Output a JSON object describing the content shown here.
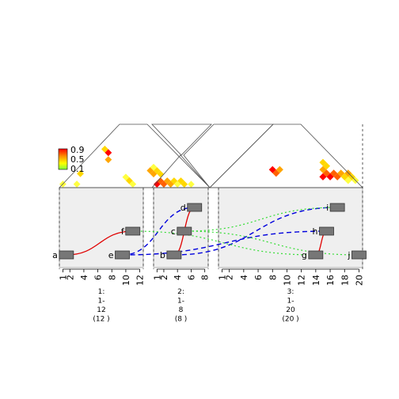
{
  "legend": {
    "labels": [
      "0.9",
      "0.5",
      "0.1"
    ],
    "colors": [
      "#ff0000",
      "#ff8c00",
      "#ffff00",
      "#80ff40"
    ]
  },
  "heat_colors": [
    "#80ff80",
    "#ffff40",
    "#ffd700",
    "#ffa500",
    "#ff6000",
    "#ff0000"
  ],
  "panels": [
    {
      "name": "1",
      "label_lines": [
        "1:",
        "1-",
        "12",
        "(12 )"
      ],
      "ticks": [
        "1",
        "2",
        "4",
        "6",
        "8",
        "10",
        "12"
      ],
      "tick_values": [
        1,
        2,
        4,
        6,
        8,
        10,
        12
      ],
      "max": 12
    },
    {
      "name": "2",
      "label_lines": [
        "2:",
        "1-",
        "8",
        "(8 )"
      ],
      "ticks": [
        "1",
        "2",
        "4",
        "6",
        "8"
      ],
      "tick_values": [
        1,
        2,
        4,
        6,
        8
      ],
      "max": 8
    },
    {
      "name": "3",
      "label_lines": [
        "3:",
        "1-",
        "20",
        "(20 )"
      ],
      "ticks": [
        "1",
        "2",
        "4",
        "6",
        "8",
        "10",
        "12",
        "14",
        "16",
        "18",
        "20"
      ],
      "tick_values": [
        1,
        2,
        4,
        6,
        8,
        10,
        12,
        14,
        16,
        18,
        20
      ],
      "max": 20
    }
  ],
  "features": [
    {
      "label": "a",
      "panel": 0,
      "pos": 1.5
    },
    {
      "label": "e",
      "panel": 0,
      "pos": 9.5
    },
    {
      "label": "f",
      "panel": 0,
      "pos": 11.0
    },
    {
      "label": "b",
      "panel": 1,
      "pos": 3.5
    },
    {
      "label": "c",
      "panel": 1,
      "pos": 5.0
    },
    {
      "label": "d",
      "panel": 1,
      "pos": 6.5
    },
    {
      "label": "g",
      "panel": 2,
      "pos": 14.0
    },
    {
      "label": "h",
      "panel": 2,
      "pos": 15.5
    },
    {
      "label": "i",
      "panel": 2,
      "pos": 17.0
    },
    {
      "label": "j",
      "panel": 2,
      "pos": 20.0
    }
  ],
  "links": [
    {
      "from": "a",
      "to": "f",
      "style": "red-solid"
    },
    {
      "from": "b",
      "to": "d",
      "style": "red-solid"
    },
    {
      "from": "g",
      "to": "h",
      "style": "red-solid"
    },
    {
      "from": "e",
      "to": "d",
      "style": "blue-dashed"
    },
    {
      "from": "e",
      "to": "h",
      "style": "blue-dashed"
    },
    {
      "from": "b",
      "to": "i",
      "style": "blue-dashed"
    },
    {
      "from": "f",
      "to": "g",
      "style": "green-dotted"
    },
    {
      "from": "c",
      "to": "j",
      "style": "green-dotted"
    },
    {
      "from": "c",
      "to": "i",
      "style": "green-dotted"
    }
  ],
  "heatmap_cells": [
    {
      "panel": 0,
      "i": 2,
      "j": 3,
      "v": 0.15
    },
    {
      "panel": 0,
      "i": 1,
      "j": 5,
      "v": 0.3
    },
    {
      "panel": 0,
      "i": 0,
      "j": 1,
      "v": 0.1
    },
    {
      "panel": 0,
      "i": 9,
      "j": 11,
      "v": 0.3
    },
    {
      "panel": 0,
      "i": 10,
      "j": 11,
      "v": 0.2
    },
    {
      "panel": 0,
      "i": 8,
      "j": 11,
      "v": 0.15
    },
    {
      "panel": 0,
      "i": 3,
      "j": 11,
      "v": 0.5
    },
    {
      "panel": 0,
      "i": 2,
      "j": 12,
      "v": 0.9
    },
    {
      "panel": 0,
      "i": 1,
      "j": 12,
      "v": 0.3
    },
    {
      "panel": 1,
      "i": 0,
      "j": 1,
      "v": 0.9
    },
    {
      "panel": 1,
      "i": 0,
      "j": 2,
      "v": 0.7
    },
    {
      "panel": 1,
      "i": 1,
      "j": 2,
      "v": 0.8
    },
    {
      "panel": 1,
      "i": 1,
      "j": 3,
      "v": 0.5
    },
    {
      "panel": 1,
      "i": 2,
      "j": 3,
      "v": 0.6
    },
    {
      "panel": 1,
      "i": 2,
      "j": 4,
      "v": 0.3
    },
    {
      "panel": 1,
      "i": 3,
      "j": 4,
      "v": 0.15
    },
    {
      "panel": 1,
      "i": 3,
      "j": 5,
      "v": 0.4
    },
    {
      "panel": 1,
      "i": 4,
      "j": 5,
      "v": 0.3
    },
    {
      "panel": 1,
      "i": 5,
      "j": 6,
      "v": 0.1
    },
    {
      "panel": 1,
      "i": -2,
      "j": 2,
      "v": 0.55
    },
    {
      "panel": 1,
      "i": -2,
      "j": 3,
      "v": 0.4
    },
    {
      "panel": 1,
      "i": -1,
      "j": 3,
      "v": 0.3
    },
    {
      "panel": 1,
      "i": -3,
      "j": 2,
      "v": 0.5
    },
    {
      "panel": 1,
      "i": -3,
      "j": 3,
      "v": 0.2
    },
    {
      "panel": 2,
      "i": 13,
      "j": 16,
      "v": 0.95
    },
    {
      "panel": 2,
      "i": 13,
      "j": 17,
      "v": 0.75
    },
    {
      "panel": 2,
      "i": 14,
      "j": 17,
      "v": 0.9
    },
    {
      "panel": 2,
      "i": 14,
      "j": 18,
      "v": 0.7
    },
    {
      "panel": 2,
      "i": 15,
      "j": 18,
      "v": 0.85
    },
    {
      "panel": 2,
      "i": 15,
      "j": 19,
      "v": 0.5
    },
    {
      "panel": 2,
      "i": 16,
      "j": 19,
      "v": 0.3
    },
    {
      "panel": 2,
      "i": 16,
      "j": 20,
      "v": 0.6
    },
    {
      "panel": 2,
      "i": 17,
      "j": 20,
      "v": 0.4
    },
    {
      "panel": 2,
      "i": 18,
      "j": 20,
      "v": 0.15
    },
    {
      "panel": 2,
      "i": 17,
      "j": 19,
      "v": 0.2
    },
    {
      "panel": 2,
      "i": 12,
      "j": 17,
      "v": 0.5
    },
    {
      "panel": 2,
      "i": 12,
      "j": 18,
      "v": 0.45
    },
    {
      "panel": 2,
      "i": 11,
      "j": 18,
      "v": 0.35
    },
    {
      "panel": 2,
      "i": 6,
      "j": 10,
      "v": 0.8
    },
    {
      "panel": 2,
      "i": 5,
      "j": 10,
      "v": 0.9
    },
    {
      "panel": 2,
      "i": 6,
      "j": 11,
      "v": 0.6
    }
  ]
}
